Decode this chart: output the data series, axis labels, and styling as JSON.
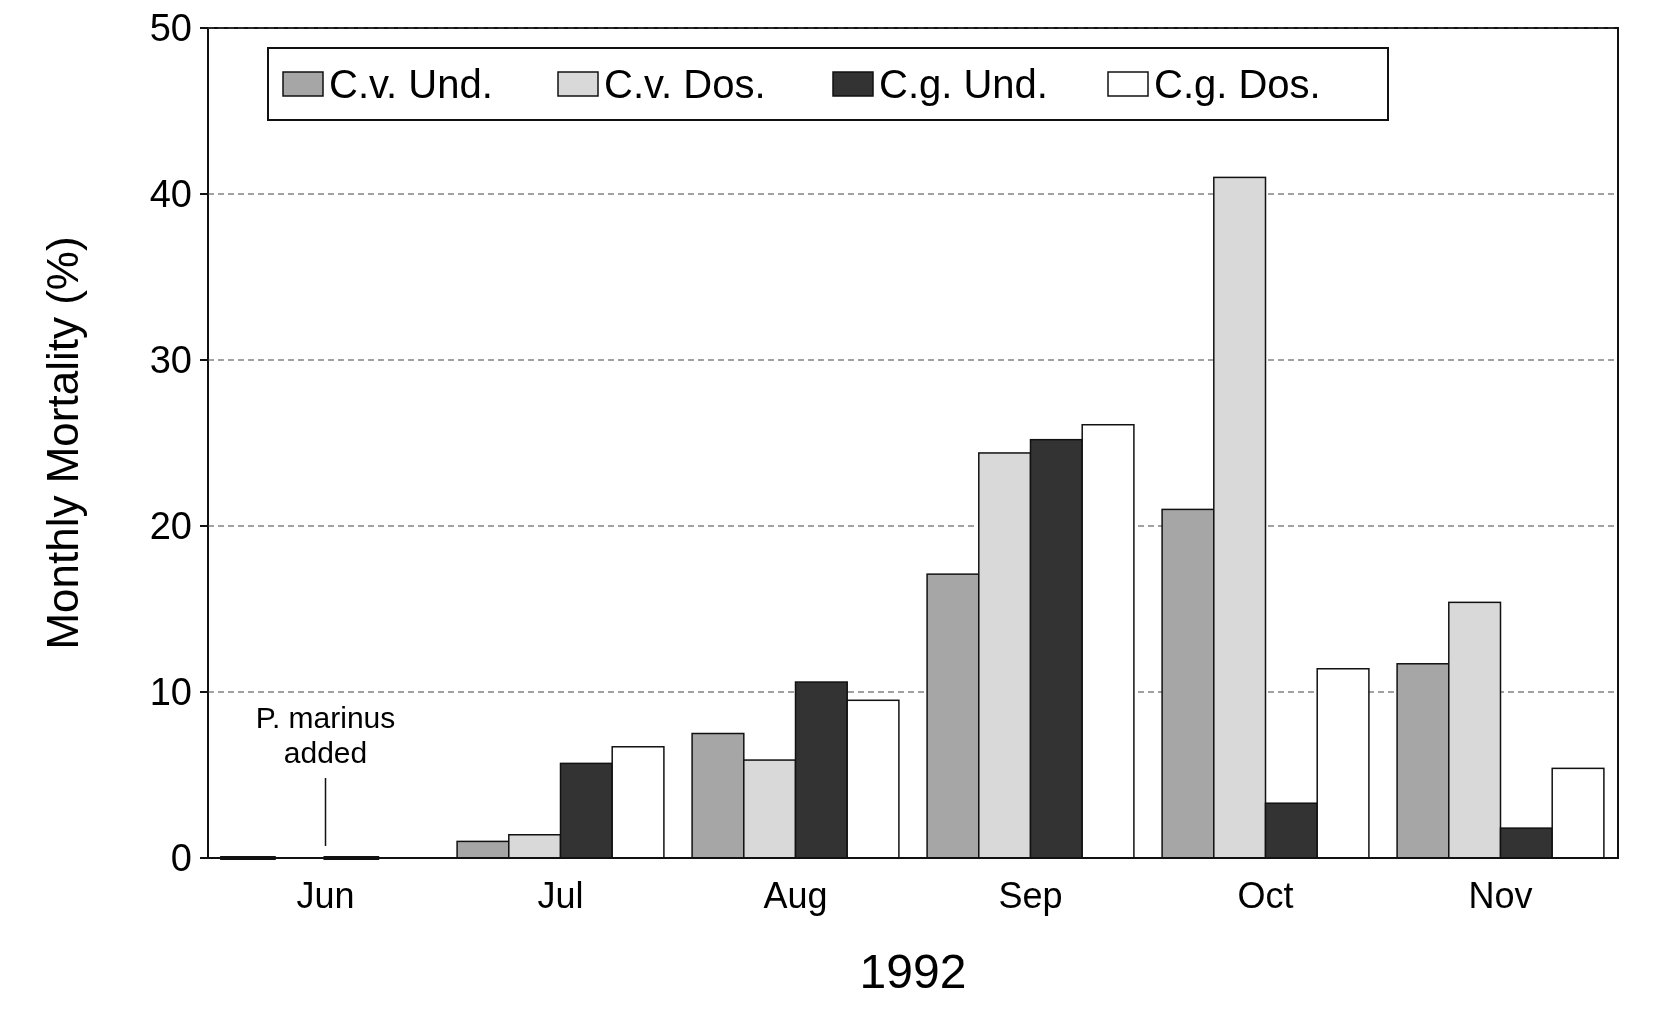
{
  "chart_data": {
    "type": "bar",
    "xlabel": "1992",
    "ylabel": "Monthly Mortality (%)",
    "categories": [
      "Jun",
      "Jul",
      "Aug",
      "Sep",
      "Oct",
      "Nov"
    ],
    "series": [
      {
        "name": "C.v. Und.",
        "color": "#a6a6a6",
        "values": [
          0,
          1,
          7.5,
          17.1,
          21,
          11.7
        ]
      },
      {
        "name": "C.v. Dos.",
        "color": "#d9d9d9",
        "values": [
          null,
          1.4,
          5.9,
          24.4,
          41,
          15.4
        ]
      },
      {
        "name": "C.g. Und.",
        "color": "#333333",
        "values": [
          0,
          5.7,
          10.6,
          25.2,
          3.3,
          1.8
        ]
      },
      {
        "name": "C.g. Dos.",
        "color": "#ffffff",
        "values": [
          null,
          6.7,
          9.5,
          26.1,
          11.4,
          5.4
        ]
      }
    ],
    "ylim": [
      0,
      50
    ],
    "yticks": [
      0,
      10,
      20,
      30,
      40,
      50
    ],
    "grid": "y",
    "legend": "top left",
    "annotations": [
      {
        "text": "P. marinus added",
        "x": "Jun",
        "y": 0
      }
    ]
  }
}
